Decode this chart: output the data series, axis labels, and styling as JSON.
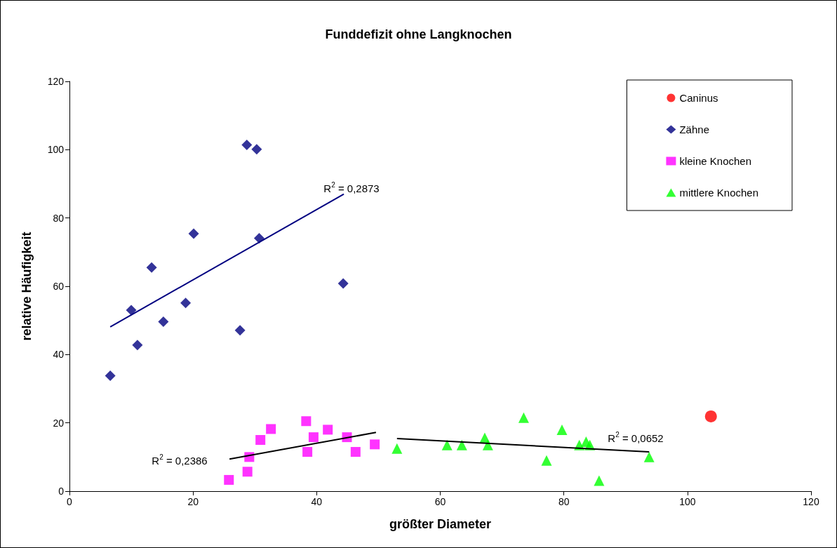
{
  "chart_data": {
    "type": "scatter",
    "title": "Funddefizit ohne Langknochen",
    "xlabel": "größter Diameter",
    "ylabel": "relative Häufigkeit",
    "xlim": [
      0,
      120
    ],
    "xticks": [
      0,
      20,
      40,
      60,
      80,
      100,
      120
    ],
    "ylim": [
      0,
      120
    ],
    "yticks": [
      0,
      20,
      40,
      60,
      80,
      100,
      120
    ],
    "grid": false,
    "legend": "top right",
    "series": [
      {
        "name": "Caninus",
        "color": "#ff0000",
        "marker": "circle",
        "x": [
          103.8
        ],
        "values": [
          21.9
        ]
      },
      {
        "name": "Zähne",
        "color": "#000080",
        "marker": "diamond",
        "x": [
          6.6,
          10.0,
          11.0,
          13.3,
          15.2,
          18.8,
          20.1,
          27.6,
          28.7,
          30.3,
          30.7,
          44.3
        ],
        "values": [
          33.8,
          53.0,
          42.8,
          65.5,
          49.6,
          55.1,
          75.4,
          47.1,
          101.4,
          100.1,
          74.1,
          60.8
        ]
      },
      {
        "name": "kleine Knochen",
        "color": "#ff00ff",
        "marker": "square",
        "x": [
          25.8,
          28.8,
          29.1,
          30.9,
          32.6,
          38.3,
          38.5,
          39.5,
          41.8,
          44.9,
          46.3,
          49.4
        ],
        "values": [
          3.3,
          5.7,
          10.0,
          15.0,
          18.2,
          20.5,
          11.5,
          15.8,
          18.0,
          15.8,
          11.5,
          13.7
        ]
      },
      {
        "name": "mittlere Knochen",
        "color": "#00ff00",
        "marker": "triangle",
        "x": [
          53.0,
          61.1,
          63.5,
          67.2,
          67.7,
          73.5,
          77.2,
          79.7,
          82.5,
          83.6,
          84.2,
          85.7,
          93.8
        ],
        "values": [
          12.5,
          13.5,
          13.5,
          15.6,
          13.5,
          21.5,
          9.0,
          18.0,
          13.5,
          14.5,
          13.5,
          3.1,
          10.0
        ]
      },
      {
        "type": "line",
        "color": "#000080",
        "marker": "none",
        "x": [
          6.6,
          44.4
        ],
        "values": [
          48.1,
          87.0
        ]
      },
      {
        "type": "line",
        "color": "#000000",
        "marker": "none",
        "x": [
          25.9,
          49.6
        ],
        "values": [
          9.4,
          17.2
        ]
      },
      {
        "type": "line",
        "color": "#000000",
        "marker": "none",
        "x": [
          53.0,
          93.8
        ],
        "values": [
          15.4,
          11.5
        ]
      }
    ],
    "annotations": [
      "R$^{2}$ = 0,2873",
      "R$^{2}$ = 0,2386",
      "R$^{2}$ = 0,0652"
    ]
  }
}
